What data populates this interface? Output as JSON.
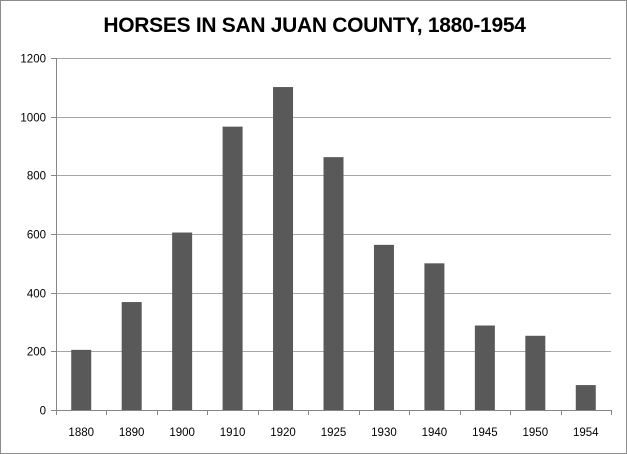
{
  "chart_data": {
    "type": "bar",
    "title": "HORSES IN SAN JUAN COUNTY, 1880-1954",
    "xlabel": "",
    "ylabel": "",
    "categories": [
      "1880",
      "1890",
      "1900",
      "1910",
      "1920",
      "1925",
      "1930",
      "1940",
      "1945",
      "1950",
      "1954"
    ],
    "values": [
      205,
      368,
      605,
      966,
      1101,
      862,
      563,
      500,
      288,
      253,
      85
    ],
    "ylim": [
      0,
      1200
    ],
    "yticks": [
      0,
      200,
      400,
      600,
      800,
      1000,
      1200
    ],
    "grid": true,
    "legend": "none",
    "bar_color": "#595959",
    "grid_color": "#a6a6a6"
  }
}
